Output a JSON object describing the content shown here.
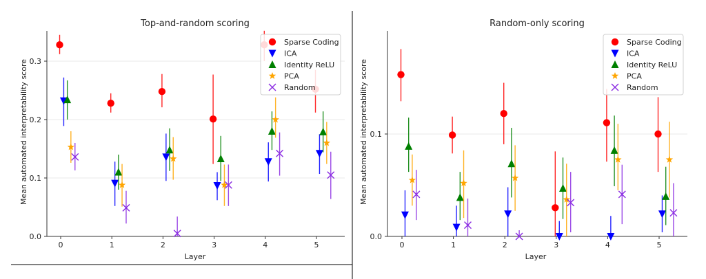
{
  "chart_data": [
    {
      "type": "scatter",
      "title": "Top-and-random scoring",
      "xlabel": "Layer",
      "ylabel": "Mean automated interpretability score",
      "x": [
        0,
        1,
        2,
        3,
        4,
        5
      ],
      "xticks": [
        "0",
        "1",
        "2",
        "3",
        "4",
        "5"
      ],
      "yticks": [
        "0.0",
        "0.1",
        "0.2",
        "0.3"
      ],
      "ylim": [
        0,
        0.35
      ],
      "grid": "horizontal",
      "legend_position": "top-right",
      "error_bars": true,
      "series": [
        {
          "name": "Sparse Coding",
          "marker": "circle",
          "color": "#ff0000",
          "values": [
            0.328,
            0.228,
            0.248,
            0.201,
            0.328,
            0.252
          ],
          "err_low": [
            0.312,
            0.212,
            0.221,
            0.124,
            0.3,
            0.212
          ],
          "err_high": [
            0.345,
            0.245,
            0.278,
            0.277,
            0.352,
            0.285
          ]
        },
        {
          "name": "ICA",
          "marker": "triangle-down",
          "color": "#0000ff",
          "values": [
            0.232,
            0.091,
            0.136,
            0.087,
            0.128,
            0.142
          ],
          "err_low": [
            0.189,
            0.052,
            0.095,
            0.062,
            0.094,
            0.107
          ],
          "err_high": [
            0.272,
            0.128,
            0.176,
            0.11,
            0.161,
            0.175
          ]
        },
        {
          "name": "Identity ReLU",
          "marker": "triangle-up",
          "color": "#008000",
          "values": [
            0.234,
            0.11,
            0.148,
            0.133,
            0.18,
            0.179
          ],
          "err_low": [
            0.2,
            0.08,
            0.112,
            0.095,
            0.148,
            0.144
          ],
          "err_high": [
            0.267,
            0.14,
            0.185,
            0.172,
            0.214,
            0.214
          ]
        },
        {
          "name": "PCA",
          "marker": "star",
          "color": "#ffa500",
          "values": [
            0.153,
            0.088,
            0.133,
            0.088,
            0.2,
            0.16
          ],
          "err_low": [
            0.126,
            0.051,
            0.097,
            0.052,
            0.169,
            0.124
          ],
          "err_high": [
            0.18,
            0.124,
            0.17,
            0.123,
            0.238,
            0.196
          ]
        },
        {
          "name": "Random",
          "marker": "x",
          "color": "#8a2be2",
          "values": [
            0.136,
            0.049,
            0.005,
            0.088,
            0.142,
            0.105
          ],
          "err_low": [
            0.113,
            0.022,
            0.0,
            0.052,
            0.104,
            0.064
          ],
          "err_high": [
            0.16,
            0.078,
            0.034,
            0.123,
            0.178,
            0.145
          ]
        }
      ]
    },
    {
      "type": "scatter",
      "title": "Random-only scoring",
      "xlabel": "Layer",
      "ylabel": "Mean automated interpretability score",
      "x": [
        0,
        1,
        2,
        3,
        4,
        5
      ],
      "xticks": [
        "0",
        "1",
        "2",
        "3",
        "4",
        "5"
      ],
      "yticks": [
        "0.0",
        "0.1"
      ],
      "ylim": [
        0,
        0.2
      ],
      "grid": "horizontal",
      "legend_position": "top-right",
      "error_bars": true,
      "series": [
        {
          "name": "Sparse Coding",
          "marker": "circle",
          "color": "#ff0000",
          "values": [
            0.158,
            0.099,
            0.12,
            0.028,
            0.111,
            0.1
          ],
          "err_low": [
            0.132,
            0.081,
            0.09,
            0.0,
            0.073,
            0.063
          ],
          "err_high": [
            0.183,
            0.117,
            0.15,
            0.083,
            0.144,
            0.136
          ]
        },
        {
          "name": "ICA",
          "marker": "triangle-down",
          "color": "#0000ff",
          "values": [
            0.021,
            0.009,
            0.022,
            0.0,
            0.0,
            0.022
          ],
          "err_low": [
            0.0,
            0.0,
            0.0,
            0.0,
            0.0,
            0.004
          ],
          "err_high": [
            0.045,
            0.03,
            0.048,
            0.015,
            0.02,
            0.04
          ]
        },
        {
          "name": "Identity ReLU",
          "marker": "triangle-up",
          "color": "#008000",
          "values": [
            0.088,
            0.038,
            0.071,
            0.047,
            0.084,
            0.039
          ],
          "err_low": [
            0.063,
            0.016,
            0.038,
            0.017,
            0.049,
            0.011
          ],
          "err_high": [
            0.116,
            0.063,
            0.106,
            0.077,
            0.118,
            0.068
          ]
        },
        {
          "name": "PCA",
          "marker": "star",
          "color": "#ffa500",
          "values": [
            0.055,
            0.052,
            0.057,
            0.036,
            0.075,
            0.075
          ],
          "err_low": [
            0.03,
            0.018,
            0.025,
            0.0,
            0.045,
            0.038
          ],
          "err_high": [
            0.08,
            0.084,
            0.089,
            0.071,
            0.11,
            0.112
          ]
        },
        {
          "name": "Random",
          "marker": "x",
          "color": "#8a2be2",
          "values": [
            0.041,
            0.011,
            0.0,
            0.033,
            0.041,
            0.023
          ],
          "err_low": [
            0.016,
            0.0,
            0.0,
            0.004,
            0.012,
            0.0
          ],
          "err_high": [
            0.065,
            0.037,
            0.006,
            0.063,
            0.07,
            0.052
          ]
        }
      ]
    }
  ]
}
